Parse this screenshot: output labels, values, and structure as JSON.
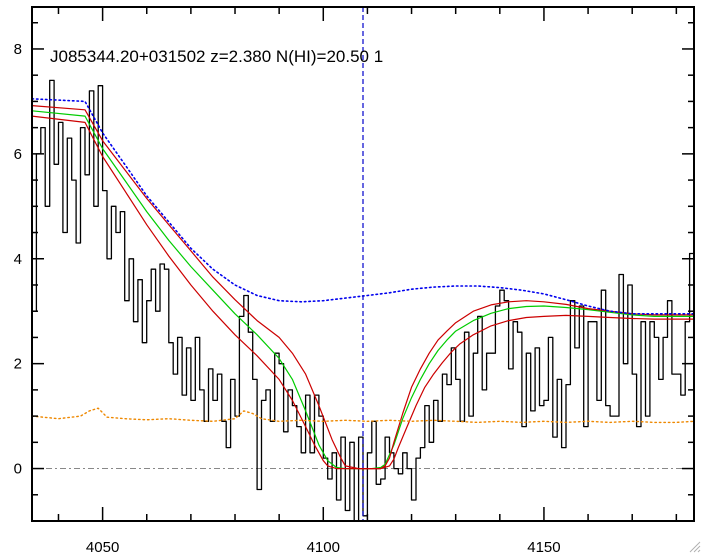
{
  "chart_data": {
    "type": "line",
    "title": "J085344.20+031502 z=2.380 N(HI)=20.50 1",
    "xlabel": "",
    "ylabel": "",
    "xlim": [
      4034,
      4184
    ],
    "ylim": [
      -1,
      8.8
    ],
    "x_ticks": [
      4050,
      4100,
      4150
    ],
    "y_ticks": [
      0,
      2,
      4,
      6,
      8
    ],
    "grid": false,
    "marker_line_x": 4109,
    "zero_line_y": 0,
    "colors": {
      "flux": "#000000",
      "model": "#00cc00",
      "bounds": "#cc0000",
      "continuum": "#0000ee",
      "error": "#ee8800",
      "marker": "#0000cc",
      "zero": "#888888"
    },
    "series": [
      {
        "key": "flux",
        "style": "step",
        "x": [
          4034,
          4035,
          4036,
          4037,
          4038,
          4039,
          4040,
          4041,
          4042,
          4043,
          4044,
          4045,
          4046,
          4047,
          4048,
          4049,
          4050,
          4051,
          4052,
          4053,
          4054,
          4055,
          4056,
          4057,
          4058,
          4059,
          4060,
          4061,
          4062,
          4063,
          4064,
          4065,
          4066,
          4067,
          4068,
          4069,
          4070,
          4071,
          4072,
          4073,
          4074,
          4075,
          4076,
          4077,
          4078,
          4079,
          4080,
          4081,
          4082,
          4083,
          4084,
          4085,
          4086,
          4087,
          4088,
          4089,
          4090,
          4091,
          4092,
          4093,
          4094,
          4095,
          4096,
          4097,
          4098,
          4099,
          4100,
          4101,
          4102,
          4103,
          4104,
          4105,
          4106,
          4107,
          4108,
          4109,
          4110,
          4111,
          4112,
          4113,
          4114,
          4115,
          4116,
          4117,
          4118,
          4119,
          4120,
          4121,
          4122,
          4123,
          4124,
          4125,
          4126,
          4127,
          4128,
          4129,
          4130,
          4131,
          4132,
          4133,
          4134,
          4135,
          4136,
          4137,
          4138,
          4139,
          4140,
          4141,
          4142,
          4143,
          4144,
          4145,
          4146,
          4147,
          4148,
          4149,
          4150,
          4151,
          4152,
          4153,
          4154,
          4155,
          4156,
          4157,
          4158,
          4159,
          4160,
          4161,
          4162,
          4163,
          4164,
          4165,
          4166,
          4167,
          4168,
          4169,
          4170,
          4171,
          4172,
          4173,
          4174,
          4175,
          4176,
          4177,
          4178,
          4179,
          4180,
          4181,
          4182,
          4183
        ],
        "y": [
          3.0,
          6.0,
          6.5,
          5.0,
          7.4,
          5.8,
          6.6,
          4.5,
          6.3,
          5.5,
          4.3,
          6.5,
          5.6,
          7.2,
          5.0,
          7.3,
          5.3,
          4.0,
          5.0,
          4.5,
          4.9,
          3.2,
          4.0,
          2.8,
          3.6,
          2.4,
          3.2,
          3.8,
          3.0,
          3.9,
          3.8,
          2.4,
          1.8,
          2.5,
          1.4,
          2.3,
          1.3,
          2.5,
          1.5,
          0.9,
          1.9,
          1.3,
          1.8,
          0.9,
          0.4,
          1.7,
          1.0,
          2.9,
          3.3,
          2.6,
          1.7,
          -0.4,
          1.3,
          1.5,
          0.9,
          2.2,
          2.0,
          0.7,
          1.5,
          1.2,
          0.8,
          0.3,
          1.4,
          0.3,
          1.4,
          1.0,
          0.2,
          -0.2,
          0.3,
          -0.6,
          0.6,
          -0.8,
          0.5,
          -1.0,
          0.6,
          -0.9,
          0.3,
          0.9,
          -0.3,
          -0.2,
          0.6,
          0.3,
          0.0,
          -0.1,
          0.3,
          0.0,
          -0.6,
          0.2,
          0.4,
          1.2,
          0.5,
          1.3,
          0.9,
          1.8,
          1.6,
          2.3,
          1.7,
          0.9,
          2.6,
          1.0,
          2.2,
          2.9,
          1.5,
          2.2,
          2.2,
          3.1,
          3.4,
          3.2,
          1.9,
          2.8,
          2.6,
          0.8,
          2.2,
          1.1,
          2.3,
          1.2,
          1.3,
          2.5,
          0.6,
          1.7,
          0.4,
          1.6,
          3.2,
          2.3,
          3.1,
          0.8,
          2.8,
          2.8,
          1.3,
          3.4,
          1.2,
          1.0,
          1.0,
          3.7,
          2.0,
          3.5,
          1.8,
          0.8,
          2.8,
          1.0,
          2.8,
          2.5,
          1.7,
          2.5,
          3.2,
          1.8,
          1.8,
          1.4,
          2.8,
          4.1
        ]
      },
      {
        "key": "model",
        "style": "line",
        "x": [
          4034,
          4046,
          4050,
          4055,
          4060,
          4065,
          4070,
          4075,
          4080,
          4085,
          4090,
          4093,
          4096,
          4099,
          4101,
          4103,
          4105,
          4108,
          4111,
          4113,
          4114,
          4116,
          4118,
          4120,
          4122,
          4124,
          4126,
          4128,
          4130,
          4134,
          4138,
          4142,
          4146,
          4150,
          4155,
          4160,
          4165,
          4170,
          4175,
          4180,
          4184
        ],
        "y": [
          6.82,
          6.72,
          6.1,
          5.5,
          4.9,
          4.35,
          3.85,
          3.4,
          2.95,
          2.55,
          2.1,
          1.7,
          1.1,
          0.45,
          0.15,
          0.02,
          0.0,
          0.0,
          0.0,
          0.02,
          0.08,
          0.45,
          0.95,
          1.35,
          1.7,
          2.0,
          2.25,
          2.45,
          2.62,
          2.82,
          2.96,
          3.05,
          3.09,
          3.1,
          3.07,
          3.03,
          2.98,
          2.93,
          2.9,
          2.9,
          2.9
        ]
      },
      {
        "key": "upper-bound",
        "style": "line",
        "x": [
          4034,
          4046,
          4050,
          4055,
          4060,
          4065,
          4070,
          4075,
          4080,
          4085,
          4090,
          4093,
          4096,
          4099,
          4102,
          4104,
          4105,
          4108,
          4111,
          4113,
          4114,
          4115,
          4116,
          4118,
          4120,
          4122,
          4124,
          4126,
          4128,
          4130,
          4134,
          4138,
          4142,
          4146,
          4150,
          4155,
          4160,
          4165,
          4170,
          4175,
          4180,
          4184
        ],
        "y": [
          6.92,
          6.84,
          6.25,
          5.7,
          5.15,
          4.65,
          4.15,
          3.65,
          3.22,
          2.82,
          2.5,
          2.2,
          1.8,
          1.2,
          0.55,
          0.2,
          0.05,
          0.0,
          0.0,
          0.0,
          0.05,
          0.2,
          0.5,
          1.05,
          1.55,
          1.9,
          2.2,
          2.45,
          2.62,
          2.78,
          3.0,
          3.12,
          3.18,
          3.2,
          3.18,
          3.13,
          3.05,
          3.0,
          2.95,
          2.93,
          2.93,
          2.93
        ]
      },
      {
        "key": "lower-bound",
        "style": "line",
        "x": [
          4034,
          4046,
          4050,
          4055,
          4060,
          4065,
          4070,
          4075,
          4080,
          4085,
          4090,
          4093,
          4096,
          4098,
          4100,
          4101,
          4103,
          4105,
          4108,
          4111,
          4113,
          4115,
          4116,
          4117,
          4119,
          4121,
          4123,
          4125,
          4127,
          4129,
          4131,
          4134,
          4138,
          4142,
          4146,
          4150,
          4155,
          4160,
          4165,
          4170,
          4175,
          4180,
          4184
        ],
        "y": [
          6.72,
          6.6,
          5.95,
          5.3,
          4.65,
          4.05,
          3.5,
          3.0,
          2.55,
          2.15,
          1.7,
          1.3,
          0.8,
          0.45,
          0.15,
          0.05,
          0.0,
          0.0,
          0.0,
          0.0,
          0.0,
          0.05,
          0.18,
          0.4,
          0.8,
          1.2,
          1.55,
          1.8,
          2.02,
          2.22,
          2.38,
          2.55,
          2.72,
          2.82,
          2.88,
          2.9,
          2.92,
          2.9,
          2.88,
          2.86,
          2.85,
          2.85,
          2.85
        ]
      },
      {
        "key": "continuum",
        "style": "dotted",
        "x": [
          4034,
          4046,
          4050,
          4055,
          4060,
          4065,
          4070,
          4075,
          4080,
          4085,
          4090,
          4095,
          4100,
          4105,
          4110,
          4115,
          4120,
          4125,
          4130,
          4135,
          4140,
          4145,
          4150,
          4155,
          4160,
          4165,
          4170,
          4175,
          4180,
          4184
        ],
        "y": [
          7.05,
          7.0,
          6.4,
          5.8,
          5.2,
          4.7,
          4.2,
          3.8,
          3.5,
          3.3,
          3.2,
          3.18,
          3.2,
          3.25,
          3.3,
          3.35,
          3.42,
          3.46,
          3.48,
          3.48,
          3.45,
          3.4,
          3.33,
          3.22,
          3.1,
          3.0,
          2.95,
          2.95,
          2.95,
          2.95
        ]
      },
      {
        "key": "error",
        "style": "dotted",
        "x": [
          4034,
          4040,
          4045,
          4047,
          4049,
          4051,
          4055,
          4060,
          4065,
          4070,
          4075,
          4080,
          4082,
          4084,
          4086,
          4090,
          4095,
          4100,
          4105,
          4110,
          4115,
          4120,
          4125,
          4130,
          4135,
          4140,
          4145,
          4150,
          4155,
          4160,
          4165,
          4170,
          4175,
          4180,
          4184
        ],
        "y": [
          1.0,
          0.95,
          1.0,
          1.1,
          1.15,
          0.98,
          0.95,
          0.93,
          0.95,
          0.92,
          0.9,
          0.95,
          1.1,
          1.05,
          0.95,
          0.9,
          0.92,
          0.9,
          0.92,
          0.9,
          0.92,
          0.9,
          0.92,
          0.9,
          0.88,
          0.9,
          0.88,
          0.9,
          0.88,
          0.9,
          0.88,
          0.9,
          0.88,
          0.88,
          0.9
        ]
      }
    ]
  }
}
